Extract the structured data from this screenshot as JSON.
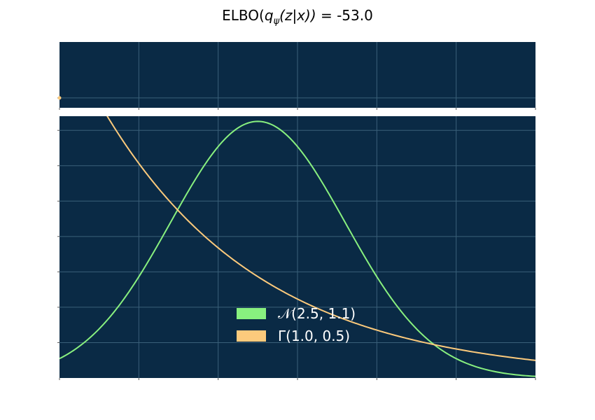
{
  "chart_data": {
    "title_parts": {
      "prefix": "ELBO(",
      "q": "q",
      "psi": "ψ",
      "args": "(z|x)) = ",
      "value": "-53.0"
    },
    "colors": {
      "panel_bg": "#0a2a45",
      "grid": "#3a6079",
      "tick": "#555555",
      "gaussian": "#88f07f",
      "gamma": "#fcca7c"
    },
    "panels": [
      {
        "type": "line",
        "role": "top-strip",
        "xlim": [
          0,
          6
        ],
        "ylim": [
          0,
          1
        ],
        "grid": true,
        "marker": {
          "x": 0,
          "y": 0.15
        }
      },
      {
        "type": "line",
        "role": "density-plot",
        "xlim": [
          0,
          6
        ],
        "ylim": [
          0,
          0.37
        ],
        "grid": true,
        "legend_position": "lower-center",
        "series": [
          {
            "name": "𝒩(2.5, 1.1)",
            "distribution": "normal",
            "mu": 2.5,
            "sigma": 1.1,
            "color": "#88f07f"
          },
          {
            "name": "Γ(1.0, 0.5)",
            "distribution": "exponential-gamma",
            "shape": 1.0,
            "scale": 2.0,
            "color": "#fcca7c"
          }
        ]
      }
    ]
  }
}
